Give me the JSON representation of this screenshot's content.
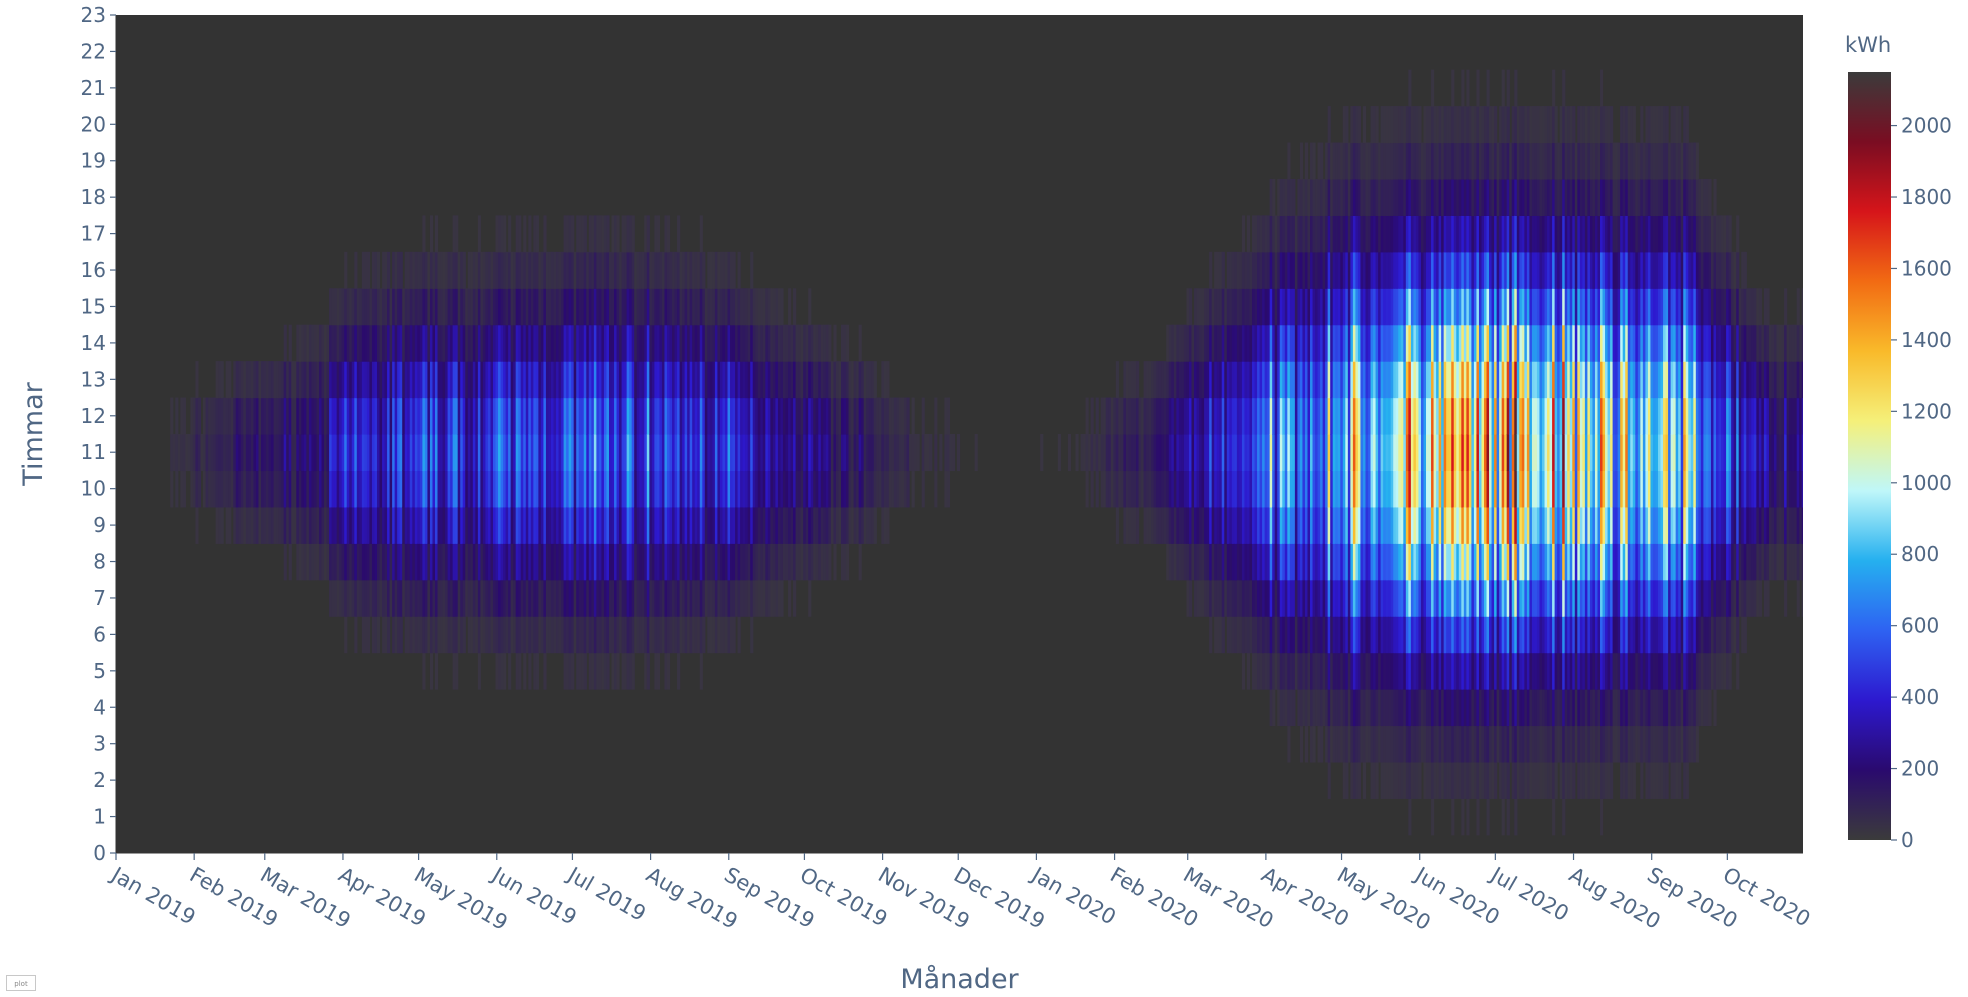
{
  "chart_data": {
    "type": "heatmap",
    "title": "",
    "xlabel": "Månader",
    "ylabel": "Timmar",
    "colorbar_title": "kWh",
    "x_tick_labels": [
      "Jan 2019",
      "Feb 2019",
      "Mar 2019",
      "Apr 2019",
      "May 2019",
      "Jun 2019",
      "Jul 2019",
      "Aug 2019",
      "Sep 2019",
      "Oct 2019",
      "Nov 2019",
      "Dec 2019",
      "Jan 2020",
      "Feb 2020",
      "Mar 2020",
      "Apr 2020",
      "May 2020",
      "Jun 2020",
      "Jul 2020",
      "Aug 2020",
      "Sep 2020",
      "Oct 2020"
    ],
    "x_range": [
      "2019-01-01",
      "2020-10-31"
    ],
    "y_tick_labels": [
      "0",
      "1",
      "2",
      "3",
      "4",
      "5",
      "6",
      "7",
      "8",
      "9",
      "10",
      "11",
      "12",
      "13",
      "14",
      "15",
      "16",
      "17",
      "18",
      "19",
      "20",
      "21",
      "22",
      "23"
    ],
    "y_range": [
      0,
      23
    ],
    "colorbar_ticks": [
      "0",
      "200",
      "400",
      "600",
      "800",
      "1000",
      "1200",
      "1400",
      "1600",
      "1800",
      "2000"
    ],
    "zlim": [
      0,
      2150
    ],
    "colorscale": [
      "#3b3b3b",
      "#2a0a6e",
      "#2d19cf",
      "#2e62f2",
      "#25b0ef",
      "#bff7f9",
      "#f5f07a",
      "#f9ba2a",
      "#f26b13",
      "#d6151a",
      "#7a0d22",
      "#3b3b3b"
    ],
    "background_color": "#333333",
    "peak_hour": 11,
    "monthly_peak_kwh": [
      {
        "month": "2019-01",
        "peak": 0
      },
      {
        "month": "2019-02",
        "peak": 180
      },
      {
        "month": "2019-03",
        "peak": 320
      },
      {
        "month": "2019-04",
        "peak": 720
      },
      {
        "month": "2019-05",
        "peak": 740
      },
      {
        "month": "2019-06",
        "peak": 800
      },
      {
        "month": "2019-07",
        "peak": 860
      },
      {
        "month": "2019-08",
        "peak": 780
      },
      {
        "month": "2019-09",
        "peak": 560
      },
      {
        "month": "2019-10",
        "peak": 300
      },
      {
        "month": "2019-11",
        "peak": 60
      },
      {
        "month": "2019-12",
        "peak": 20
      },
      {
        "month": "2020-01",
        "peak": 30
      },
      {
        "month": "2020-02",
        "peak": 200
      },
      {
        "month": "2020-03",
        "peak": 700
      },
      {
        "month": "2020-04",
        "peak": 1150
      },
      {
        "month": "2020-05",
        "peak": 1500
      },
      {
        "month": "2020-06",
        "peak": 2050
      },
      {
        "month": "2020-07",
        "peak": 1800
      },
      {
        "month": "2020-08",
        "peak": 1700
      },
      {
        "month": "2020-09",
        "peak": 1300
      },
      {
        "month": "2020-10",
        "peak": 450
      }
    ]
  }
}
